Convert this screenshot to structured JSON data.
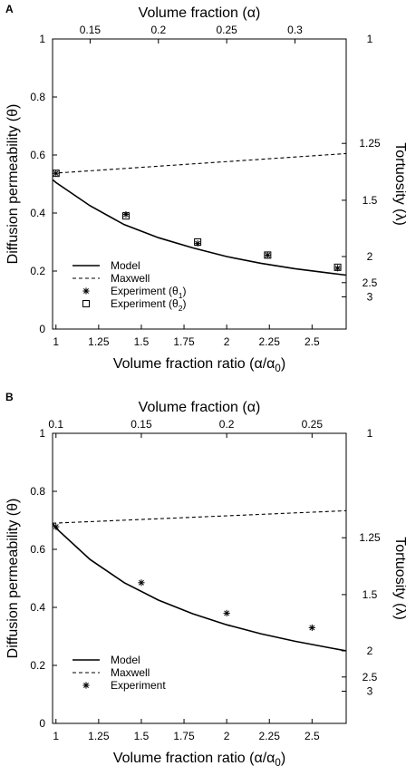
{
  "chart_data": [
    {
      "type": "line",
      "panel_label": "A",
      "xlabel": "Volume fraction ratio (α/α",
      "xlabel_sub": "0",
      "xlabel_end": ")",
      "top_xlabel": "Volume fraction (α)",
      "ylabel": "Diffusion permeability (θ)",
      "right_ylabel": "Tortuosity (λ)",
      "xlim": [
        0.98,
        2.7
      ],
      "ylim": [
        0,
        1
      ],
      "x_ticks": [
        "1",
        "1.25",
        "1.5",
        "1.75",
        "2",
        "2.25",
        "2.5"
      ],
      "y_ticks": [
        "0",
        "0.2",
        "0.4",
        "0.6",
        "0.8",
        "1"
      ],
      "top_ticks": [
        "0.15",
        "0.2",
        "0.25",
        "0.3"
      ],
      "top_tick_ratio": [
        1.2,
        1.6,
        2.0,
        2.4
      ],
      "right_ticks": [
        "1",
        "1.25",
        "1.5",
        "2",
        "2.5",
        "3"
      ],
      "right_tick_theta": [
        1.0,
        0.64,
        0.444,
        0.25,
        0.16,
        0.111
      ],
      "series": [
        {
          "name": "Model",
          "style": "solid",
          "x": [
            0.98,
            1.0,
            1.2,
            1.4,
            1.6,
            1.8,
            2.0,
            2.2,
            2.4,
            2.6,
            2.7
          ],
          "y": [
            0.515,
            0.505,
            0.425,
            0.36,
            0.315,
            0.28,
            0.25,
            0.227,
            0.208,
            0.193,
            0.186
          ]
        },
        {
          "name": "Maxwell",
          "style": "dashed",
          "x": [
            0.98,
            2.7
          ],
          "y": [
            0.537,
            0.605
          ]
        },
        {
          "name": "Experiment (θ1)",
          "style": "star",
          "x": [
            1.0,
            1.41,
            1.83,
            2.24,
            2.65
          ],
          "y": [
            0.537,
            0.395,
            0.295,
            0.255,
            0.21
          ]
        },
        {
          "name": "Experiment (θ2)",
          "style": "square",
          "x": [
            1.0,
            1.41,
            1.83,
            2.24,
            2.65
          ],
          "y": [
            0.537,
            0.39,
            0.3,
            0.255,
            0.213
          ]
        }
      ],
      "legend": [
        {
          "label": "Model",
          "kind": "solid"
        },
        {
          "label": "Maxwell",
          "kind": "dashed"
        },
        {
          "label": "Experiment (θ",
          "sub": "1",
          "end": ")",
          "kind": "star"
        },
        {
          "label": "Experiment (θ",
          "sub": "2",
          "end": ")",
          "kind": "square"
        }
      ]
    },
    {
      "type": "line",
      "panel_label": "B",
      "xlabel": "Volume fraction ratio (α/α",
      "xlabel_sub": "0",
      "xlabel_end": ")",
      "top_xlabel": "Volume fraction (α)",
      "ylabel": "Diffusion permeability (θ)",
      "right_ylabel": "Tortuosity (λ)",
      "xlim": [
        0.98,
        2.7
      ],
      "ylim": [
        0,
        1
      ],
      "x_ticks": [
        "1",
        "1.25",
        "1.5",
        "1.75",
        "2",
        "2.25",
        "2.5"
      ],
      "y_ticks": [
        "0",
        "0.2",
        "0.4",
        "0.6",
        "0.8",
        "1"
      ],
      "top_ticks": [
        "0.1",
        "0.15",
        "0.2",
        "0.25"
      ],
      "top_tick_ratio": [
        1.0,
        1.5,
        2.0,
        2.5
      ],
      "right_ticks": [
        "1",
        "1.25",
        "1.5",
        "2",
        "2.5",
        "3"
      ],
      "right_tick_theta": [
        1.0,
        0.64,
        0.444,
        0.25,
        0.16,
        0.111
      ],
      "series": [
        {
          "name": "Model",
          "style": "solid",
          "x": [
            0.98,
            1.0,
            1.2,
            1.4,
            1.6,
            1.8,
            2.0,
            2.2,
            2.4,
            2.6,
            2.7
          ],
          "y": [
            0.69,
            0.673,
            0.565,
            0.485,
            0.425,
            0.378,
            0.34,
            0.309,
            0.283,
            0.261,
            0.25
          ]
        },
        {
          "name": "Maxwell",
          "style": "dashed",
          "x": [
            0.98,
            2.7
          ],
          "y": [
            0.69,
            0.733
          ]
        },
        {
          "name": "Experiment",
          "style": "star",
          "x": [
            1.0,
            1.5,
            2.0,
            2.5
          ],
          "y": [
            0.678,
            0.485,
            0.38,
            0.33
          ]
        }
      ],
      "legend": [
        {
          "label": "Model",
          "kind": "solid"
        },
        {
          "label": "Maxwell",
          "kind": "dashed"
        },
        {
          "label": "Experiment",
          "sub": "",
          "end": "",
          "kind": "star"
        }
      ]
    }
  ]
}
